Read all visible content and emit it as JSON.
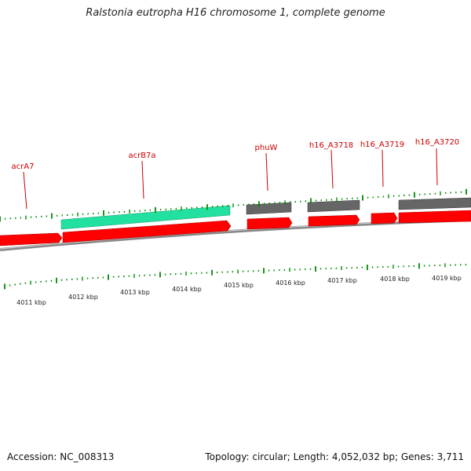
{
  "title": "Ralstonia eutropha H16 chromosome 1, complete genome",
  "accession": "Accession: NC_008313",
  "summary": "Topology: circular; Length: 4,052,032 bp; Genes: 3,711",
  "colors": {
    "forward_gene": "#ff0000",
    "reverse_gene": "#555555",
    "highlight_gene": "#22e0a0",
    "tick": "#008800",
    "backbone": "#888888",
    "gene_label": "#cc0000"
  },
  "gene_labels": [
    "acrA7",
    "acrB7a",
    "phuW",
    "h16_A3718",
    "h16_A3719",
    "h16_A3720"
  ],
  "scale_labels": [
    "4011 kbp",
    "4012 kbp",
    "4013 kbp",
    "4014 kbp",
    "4015 kbp",
    "4016 kbp",
    "4017 kbp",
    "4018 kbp",
    "4019 kbp"
  ]
}
